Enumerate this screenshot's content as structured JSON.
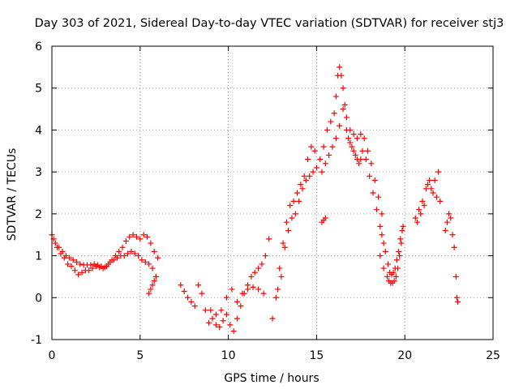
{
  "chart_data": {
    "type": "scatter",
    "title": "Day 303 of 2021, Sidereal Day-to-day VTEC variation (SDTVAR) for receiver stj3",
    "xlabel": "GPS time / hours",
    "ylabel": "SDTVAR / TECUs",
    "xlim": [
      0,
      25
    ],
    "ylim": [
      -1,
      6
    ],
    "xticks": [
      "0",
      "5",
      "10",
      "15",
      "20",
      "25"
    ],
    "yticks": [
      "-1",
      "0",
      "1",
      "2",
      "3",
      "4",
      "5",
      "6"
    ],
    "grid": true,
    "marker": "+",
    "color": "#ff0000",
    "series": [
      {
        "name": "SDTVAR",
        "x": [
          0.0,
          0.2,
          0.4,
          0.6,
          0.8,
          1.0,
          1.2,
          1.4,
          1.6,
          1.8,
          2.0,
          2.2,
          2.4,
          2.6,
          2.8,
          3.0,
          3.2,
          3.4,
          3.6,
          3.8,
          4.0,
          4.2,
          4.4,
          4.6,
          4.8,
          5.0,
          5.2,
          5.4,
          5.6,
          5.8,
          6.0,
          0.1,
          0.3,
          0.5,
          0.7,
          0.9,
          1.1,
          1.3,
          1.5,
          1.7,
          1.9,
          2.1,
          2.3,
          2.5,
          2.7,
          2.9,
          3.1,
          3.3,
          3.5,
          3.7,
          3.9,
          4.1,
          4.3,
          4.5,
          4.7,
          4.9,
          5.1,
          5.3,
          5.5,
          5.7,
          5.9,
          5.5,
          5.6,
          5.7,
          5.8,
          5.9,
          7.3,
          7.5,
          7.7,
          7.9,
          8.1,
          8.3,
          8.5,
          8.7,
          8.9,
          9.1,
          9.3,
          9.5,
          9.7,
          9.9,
          10.1,
          10.3,
          10.5,
          10.7,
          10.9,
          11.1,
          11.3,
          11.5,
          11.7,
          11.9,
          12.1,
          12.3,
          9.0,
          9.3,
          9.6,
          9.9,
          10.2,
          10.5,
          10.8,
          11.1,
          11.4,
          11.7,
          12.0,
          12.5,
          12.7,
          12.9,
          13.1,
          13.3,
          13.5,
          13.7,
          13.9,
          14.1,
          14.3,
          14.5,
          14.7,
          14.9,
          12.8,
          13.0,
          13.2,
          13.4,
          13.6,
          13.8,
          14.0,
          14.2,
          14.4,
          14.6,
          14.8,
          15.0,
          15.2,
          15.4,
          15.6,
          15.8,
          16.0,
          16.1,
          16.2,
          16.3,
          16.4,
          16.5,
          16.6,
          16.7,
          16.8,
          16.9,
          17.0,
          17.1,
          17.2,
          17.3,
          17.4,
          17.5,
          17.6,
          17.8,
          18.0,
          18.2,
          18.4,
          18.6,
          18.8,
          15.3,
          15.5,
          15.7,
          15.9,
          16.1,
          16.3,
          16.5,
          16.7,
          16.9,
          17.1,
          17.3,
          17.5,
          17.7,
          17.9,
          18.1,
          18.3,
          18.5,
          18.7,
          15.3,
          15.4,
          15.5,
          18.6,
          18.8,
          19.0,
          19.1,
          19.2,
          19.3,
          19.4,
          19.5,
          19.6,
          19.7,
          19.8,
          19.9,
          18.7,
          18.9,
          19.05,
          19.15,
          19.25,
          19.35,
          19.45,
          19.55,
          19.65,
          19.75,
          19.85,
          20.6,
          20.8,
          21.0,
          21.2,
          21.4,
          21.6,
          21.8,
          22.0,
          20.7,
          20.9,
          21.1,
          21.3,
          21.5,
          21.7,
          21.9,
          22.3,
          22.4,
          22.5,
          22.6,
          22.7,
          22.8,
          22.9,
          22.95,
          23.0
        ],
        "y": [
          1.5,
          1.3,
          1.2,
          1.1,
          1.0,
          0.95,
          0.9,
          0.85,
          0.8,
          0.78,
          0.78,
          0.78,
          0.8,
          0.78,
          0.75,
          0.72,
          0.8,
          0.9,
          1.0,
          1.1,
          1.2,
          1.35,
          1.45,
          1.5,
          1.45,
          1.4,
          1.5,
          1.45,
          1.3,
          1.1,
          0.95,
          1.4,
          1.2,
          1.05,
          0.95,
          0.8,
          0.75,
          0.65,
          0.55,
          0.6,
          0.65,
          0.65,
          0.7,
          0.75,
          0.72,
          0.7,
          0.75,
          0.85,
          0.9,
          0.95,
          1.0,
          1.0,
          1.05,
          1.1,
          1.05,
          1.0,
          0.9,
          0.85,
          0.8,
          0.7,
          0.5,
          0.1,
          0.2,
          0.3,
          0.4,
          0.5,
          0.3,
          0.15,
          0.0,
          -0.1,
          -0.2,
          0.3,
          0.1,
          -0.3,
          -0.6,
          -0.5,
          -0.65,
          -0.7,
          -0.55,
          -0.4,
          -0.65,
          -0.8,
          -0.5,
          -0.2,
          0.1,
          0.3,
          0.5,
          0.6,
          0.7,
          0.8,
          1.0,
          1.4,
          -0.3,
          -0.4,
          -0.3,
          0.0,
          0.2,
          -0.1,
          0.1,
          0.2,
          0.25,
          0.2,
          0.1,
          -0.5,
          0.0,
          0.7,
          1.3,
          1.8,
          2.2,
          2.3,
          2.5,
          2.7,
          2.9,
          3.3,
          3.6,
          3.5,
          0.2,
          0.5,
          1.2,
          1.6,
          1.9,
          2.0,
          2.3,
          2.6,
          2.8,
          2.9,
          3.0,
          3.1,
          3.3,
          3.6,
          4.0,
          4.2,
          4.4,
          4.8,
          5.3,
          5.5,
          5.3,
          5.0,
          4.6,
          4.0,
          3.8,
          3.7,
          3.6,
          3.5,
          3.4,
          3.3,
          3.2,
          3.3,
          3.5,
          3.3,
          2.9,
          2.5,
          2.1,
          1.7,
          1.3,
          3.0,
          3.2,
          3.4,
          3.6,
          3.8,
          4.1,
          4.5,
          4.3,
          4.0,
          3.9,
          3.8,
          3.9,
          3.8,
          3.5,
          3.2,
          2.8,
          2.4,
          2.0,
          1.8,
          1.85,
          1.9,
          1.0,
          0.7,
          0.5,
          0.4,
          0.35,
          0.35,
          0.4,
          0.5,
          0.7,
          1.0,
          1.3,
          1.7,
          1.5,
          1.1,
          0.8,
          0.6,
          0.55,
          0.6,
          0.7,
          0.9,
          1.1,
          1.4,
          1.6,
          1.9,
          2.1,
          2.3,
          2.6,
          2.8,
          2.5,
          2.4,
          2.3,
          1.8,
          2.0,
          2.2,
          2.7,
          2.6,
          2.8,
          3.0,
          1.6,
          1.8,
          2.0,
          1.9,
          1.5,
          1.2,
          0.5,
          0.0,
          -0.1
        ]
      }
    ]
  }
}
